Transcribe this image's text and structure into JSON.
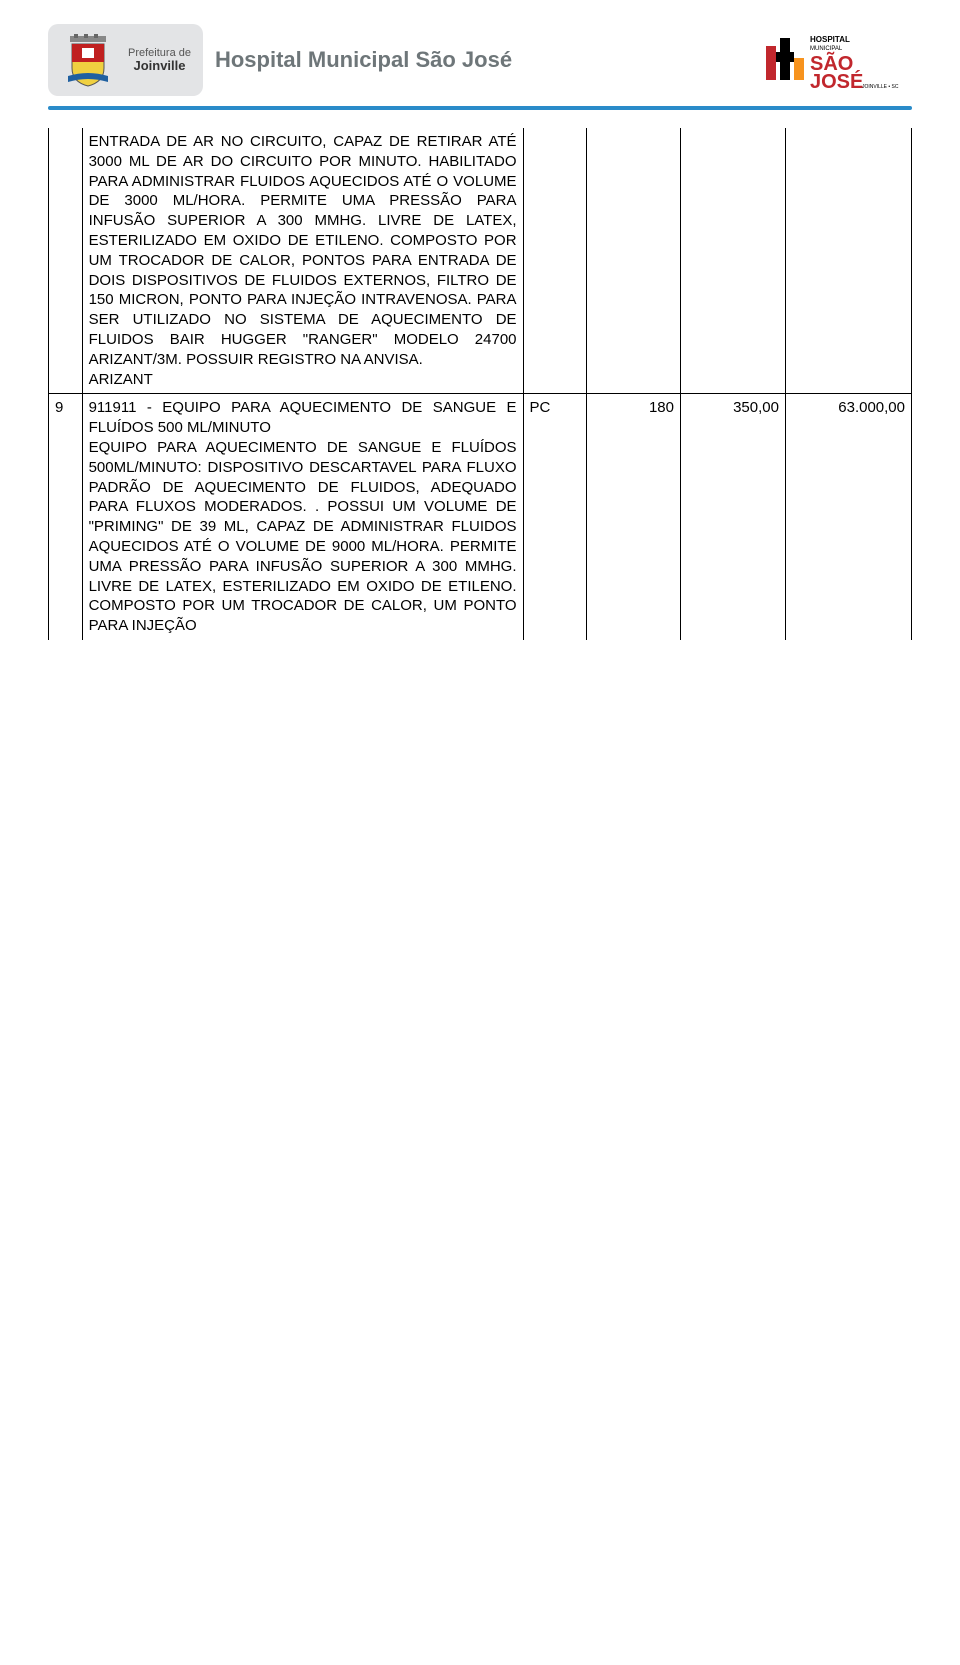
{
  "header": {
    "prefeitura_line1": "Prefeitura de",
    "prefeitura_line2": "Joinville",
    "title": "Hospital Municipal São José",
    "hospital_logo_top": "HOSPITAL",
    "hospital_logo_sub": "MUNICIPAL",
    "hospital_logo_main": "SÃO",
    "hospital_logo_main2": "JOSÉ",
    "hospital_logo_city": "JOINVILLE • SC"
  },
  "rule_color": "#2a8bc9",
  "table": {
    "rows": [
      {
        "idx": "",
        "desc": "ENTRADA DE AR NO CIRCUITO, CAPAZ DE RETIRAR ATÉ 3000 ML DE AR DO CIRCUITO POR MINUTO. HABILITADO PARA ADMINISTRAR FLUIDOS AQUECIDOS ATÉ O VOLUME DE 3000 ML/HORA. PERMITE UMA PRESSÃO PARA INFUSÃO SUPERIOR A 300 MMHG. LIVRE DE LATEX, ESTERILIZADO EM OXIDO DE ETILENO. COMPOSTO POR UM TROCADOR DE CALOR, PONTOS PARA ENTRADA DE DOIS DISPOSITIVOS DE FLUIDOS EXTERNOS, FILTRO DE 150 MICRON, PONTO PARA INJEÇÃO INTRAVENOSA. PARA SER UTILIZADO NO SISTEMA DE AQUECIMENTO DE FLUIDOS BAIR HUGGER \"RANGER\" MODELO 24700 ARIZANT/3M. POSSUIR REGISTRO NA ANVISA.\nARIZANT",
        "unit": "",
        "qty": "",
        "price": "",
        "total": "",
        "continues_from_above": true,
        "continues_below": false
      },
      {
        "idx": "9",
        "desc": "911911 - EQUIPO PARA AQUECIMENTO DE SANGUE E FLUÍDOS 500 ML/MINUTO\nEQUIPO PARA AQUECIMENTO DE SANGUE E FLUÍDOS 500ML/MINUTO: DISPOSITIVO DESCARTAVEL PARA FLUXO PADRÃO DE AQUECIMENTO DE FLUIDOS, ADEQUADO PARA FLUXOS MODERADOS. . POSSUI UM VOLUME DE \"PRIMING\" DE 39 ML, CAPAZ DE ADMINISTRAR FLUIDOS AQUECIDOS ATÉ O VOLUME DE 9000 ML/HORA. PERMITE UMA PRESSÃO PARA INFUSÃO SUPERIOR A 300 MMHG. LIVRE DE LATEX, ESTERILIZADO EM OXIDO DE ETILENO. COMPOSTO POR UM TROCADOR DE CALOR, UM PONTO PARA INJEÇÃO",
        "unit": "PC",
        "qty": "180",
        "price": "350,00",
        "total": "63.000,00",
        "continues_from_above": false,
        "continues_below": true
      }
    ]
  },
  "style": {
    "border_color": "#000000",
    "text_color": "#000000",
    "font_size": 15,
    "title_color": "#6e7679",
    "crest_colors": {
      "shield_top": "#c02020",
      "shield_bottom": "#f0d040",
      "banner": "#2060a0"
    },
    "hospital_colors": {
      "red": "#c1272d",
      "orange": "#f7931e",
      "black": "#000000"
    }
  }
}
